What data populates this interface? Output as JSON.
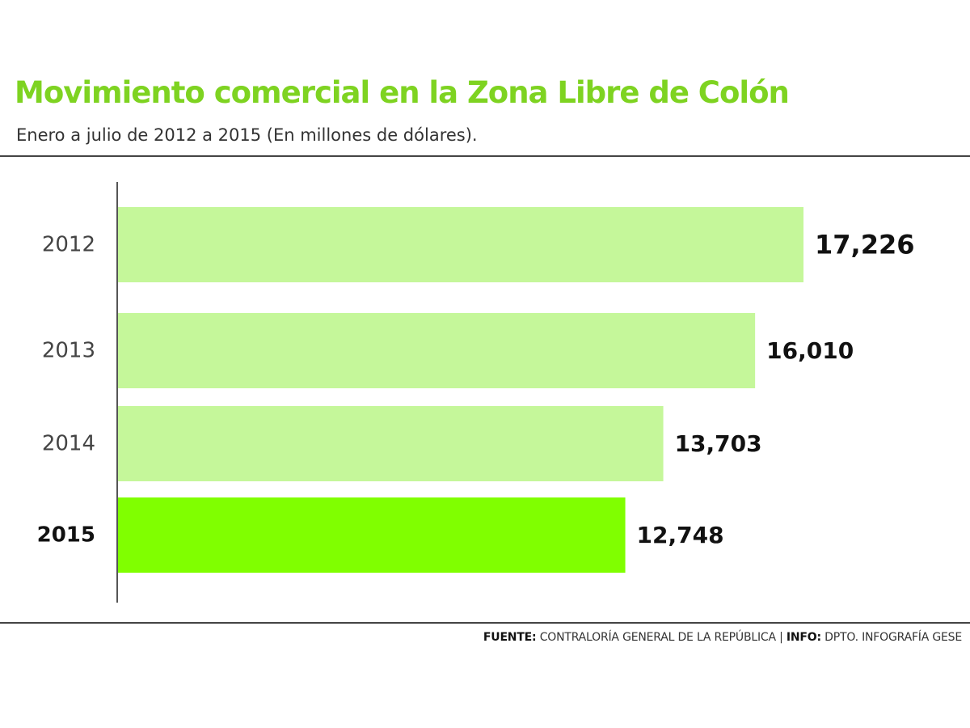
{
  "header": {
    "title": "Movimiento comercial en la Zona Libre de Colón",
    "subtitle": "Enero a julio de 2012 a 2015 (En millones de dólares)."
  },
  "footer": {
    "source_label": "FUENTE:",
    "source_text": "CONTRALORÍA GENERAL DE LA REPÚBLICA",
    "separator": "|",
    "info_label": "INFO:",
    "info_text": "DPTO. INFOGRAFÍA GESE"
  },
  "colors": {
    "title": "#7ed321",
    "bar": "#c5f79a",
    "bar_highlight": "#80ff00",
    "axis": "#555555",
    "rule": "#444444"
  },
  "chart_data": {
    "type": "bar",
    "orientation": "horizontal",
    "title": "Movimiento comercial en la Zona Libre de Colón",
    "subtitle": "Enero a julio de 2012 a 2015 (En millones de dólares).",
    "categories": [
      "2012",
      "2013",
      "2014",
      "2015"
    ],
    "values": [
      17226,
      16010,
      13703,
      12748
    ],
    "value_labels": [
      "17,226",
      "16,010",
      "13,703",
      "12,748"
    ],
    "highlight": "2015",
    "xlim": [
      0,
      17226
    ],
    "grid": false,
    "legend": "none"
  }
}
